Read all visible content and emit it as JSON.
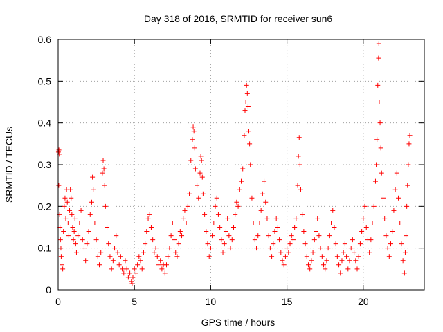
{
  "chart_data": {
    "type": "scatter",
    "title": "Day 318 of 2016, SRMTID for receiver sun6",
    "xlabel": "GPS time / hours",
    "ylabel": "SRMTID / TECUs",
    "xlim": [
      0,
      24
    ],
    "ylim": [
      0,
      0.6
    ],
    "xticks": [
      0,
      5,
      10,
      15,
      20
    ],
    "yticks": [
      0,
      0.1,
      0.2,
      0.3,
      0.4,
      0.5,
      0.6
    ],
    "xtick_labels": [
      "0",
      "5",
      "10",
      "15",
      "20"
    ],
    "ytick_labels": [
      "0",
      "0.1",
      "0.2",
      "0.3",
      "0.4",
      "0.5",
      "0.6"
    ],
    "grid": true,
    "marker": "+",
    "marker_color": "#ff0000",
    "series": [
      {
        "name": "SRMTID",
        "points": [
          [
            0.02,
            0.33
          ],
          [
            0.05,
            0.335
          ],
          [
            0.08,
            0.325
          ],
          [
            0.04,
            0.25
          ],
          [
            0.1,
            0.18
          ],
          [
            0.12,
            0.15
          ],
          [
            0.15,
            0.12
          ],
          [
            0.18,
            0.1
          ],
          [
            0.2,
            0.08
          ],
          [
            0.25,
            0.06
          ],
          [
            0.3,
            0.05
          ],
          [
            0.35,
            0.14
          ],
          [
            0.4,
            0.2
          ],
          [
            0.45,
            0.22
          ],
          [
            0.5,
            0.17
          ],
          [
            0.55,
            0.24
          ],
          [
            0.6,
            0.21
          ],
          [
            0.65,
            0.16
          ],
          [
            0.7,
            0.13
          ],
          [
            0.75,
            0.19
          ],
          [
            0.8,
            0.24
          ],
          [
            0.85,
            0.22
          ],
          [
            0.9,
            0.18
          ],
          [
            0.95,
            0.15
          ],
          [
            1.0,
            0.12
          ],
          [
            1.05,
            0.14
          ],
          [
            1.1,
            0.17
          ],
          [
            1.15,
            0.11
          ],
          [
            1.2,
            0.09
          ],
          [
            1.3,
            0.13
          ],
          [
            1.4,
            0.16
          ],
          [
            1.5,
            0.19
          ],
          [
            1.6,
            0.12
          ],
          [
            1.7,
            0.1
          ],
          [
            1.8,
            0.07
          ],
          [
            1.9,
            0.11
          ],
          [
            2.0,
            0.14
          ],
          [
            2.1,
            0.18
          ],
          [
            2.2,
            0.21
          ],
          [
            2.25,
            0.27
          ],
          [
            2.3,
            0.24
          ],
          [
            2.4,
            0.16
          ],
          [
            2.5,
            0.12
          ],
          [
            2.6,
            0.08
          ],
          [
            2.7,
            0.06
          ],
          [
            2.8,
            0.09
          ],
          [
            2.9,
            0.28
          ],
          [
            2.95,
            0.31
          ],
          [
            3.0,
            0.29
          ],
          [
            3.05,
            0.25
          ],
          [
            3.1,
            0.2
          ],
          [
            3.2,
            0.15
          ],
          [
            3.3,
            0.11
          ],
          [
            3.4,
            0.08
          ],
          [
            3.5,
            0.05
          ],
          [
            3.6,
            0.07
          ],
          [
            3.7,
            0.1
          ],
          [
            3.8,
            0.13
          ],
          [
            3.9,
            0.09
          ],
          [
            4.0,
            0.06
          ],
          [
            4.1,
            0.08
          ],
          [
            4.2,
            0.05
          ],
          [
            4.3,
            0.04
          ],
          [
            4.4,
            0.07
          ],
          [
            4.5,
            0.05
          ],
          [
            4.6,
            0.03
          ],
          [
            4.7,
            0.04
          ],
          [
            4.8,
            0.02
          ],
          [
            4.85,
            0.015
          ],
          [
            4.9,
            0.03
          ],
          [
            5.0,
            0.05
          ],
          [
            5.1,
            0.04
          ],
          [
            5.2,
            0.06
          ],
          [
            5.3,
            0.08
          ],
          [
            5.4,
            0.07
          ],
          [
            5.5,
            0.05
          ],
          [
            5.6,
            0.09
          ],
          [
            5.7,
            0.11
          ],
          [
            5.8,
            0.14
          ],
          [
            5.9,
            0.17
          ],
          [
            6.0,
            0.18
          ],
          [
            6.1,
            0.15
          ],
          [
            6.2,
            0.12
          ],
          [
            6.3,
            0.09
          ],
          [
            6.4,
            0.1
          ],
          [
            6.5,
            0.08
          ],
          [
            6.6,
            0.06
          ],
          [
            6.7,
            0.07
          ],
          [
            6.8,
            0.05
          ],
          [
            6.9,
            0.06
          ],
          [
            7.0,
            0.04
          ],
          [
            7.1,
            0.06
          ],
          [
            7.2,
            0.08
          ],
          [
            7.3,
            0.1
          ],
          [
            7.4,
            0.13
          ],
          [
            7.5,
            0.16
          ],
          [
            7.6,
            0.12
          ],
          [
            7.7,
            0.09
          ],
          [
            7.8,
            0.08
          ],
          [
            7.9,
            0.11
          ],
          [
            8.0,
            0.14
          ],
          [
            8.1,
            0.13
          ],
          [
            8.2,
            0.17
          ],
          [
            8.3,
            0.19
          ],
          [
            8.4,
            0.16
          ],
          [
            8.5,
            0.2
          ],
          [
            8.6,
            0.23
          ],
          [
            8.7,
            0.31
          ],
          [
            8.8,
            0.36
          ],
          [
            8.85,
            0.39
          ],
          [
            8.9,
            0.38
          ],
          [
            8.95,
            0.34
          ],
          [
            9.0,
            0.29
          ],
          [
            9.1,
            0.25
          ],
          [
            9.2,
            0.22
          ],
          [
            9.3,
            0.28
          ],
          [
            9.35,
            0.32
          ],
          [
            9.4,
            0.31
          ],
          [
            9.45,
            0.27
          ],
          [
            9.5,
            0.23
          ],
          [
            9.6,
            0.18
          ],
          [
            9.7,
            0.14
          ],
          [
            9.8,
            0.11
          ],
          [
            9.9,
            0.08
          ],
          [
            10.0,
            0.1
          ],
          [
            10.1,
            0.13
          ],
          [
            10.2,
            0.16
          ],
          [
            10.3,
            0.2
          ],
          [
            10.4,
            0.22
          ],
          [
            10.5,
            0.18
          ],
          [
            10.6,
            0.15
          ],
          [
            10.7,
            0.12
          ],
          [
            10.8,
            0.09
          ],
          [
            10.9,
            0.11
          ],
          [
            11.0,
            0.14
          ],
          [
            11.1,
            0.17
          ],
          [
            11.2,
            0.13
          ],
          [
            11.3,
            0.1
          ],
          [
            11.4,
            0.12
          ],
          [
            11.5,
            0.15
          ],
          [
            11.6,
            0.18
          ],
          [
            11.7,
            0.21
          ],
          [
            11.8,
            0.2
          ],
          [
            11.9,
            0.24
          ],
          [
            12.0,
            0.26
          ],
          [
            12.1,
            0.29
          ],
          [
            12.2,
            0.37
          ],
          [
            12.25,
            0.43
          ],
          [
            12.3,
            0.45
          ],
          [
            12.35,
            0.49
          ],
          [
            12.4,
            0.47
          ],
          [
            12.45,
            0.44
          ],
          [
            12.5,
            0.38
          ],
          [
            12.55,
            0.35
          ],
          [
            12.6,
            0.3
          ],
          [
            12.7,
            0.22
          ],
          [
            12.8,
            0.16
          ],
          [
            12.9,
            0.12
          ],
          [
            13.0,
            0.1
          ],
          [
            13.1,
            0.13
          ],
          [
            13.2,
            0.16
          ],
          [
            13.3,
            0.19
          ],
          [
            13.4,
            0.23
          ],
          [
            13.5,
            0.26
          ],
          [
            13.6,
            0.21
          ],
          [
            13.7,
            0.17
          ],
          [
            13.8,
            0.13
          ],
          [
            13.9,
            0.1
          ],
          [
            14.0,
            0.08
          ],
          [
            14.1,
            0.11
          ],
          [
            14.2,
            0.14
          ],
          [
            14.3,
            0.17
          ],
          [
            14.4,
            0.15
          ],
          [
            14.5,
            0.12
          ],
          [
            14.6,
            0.09
          ],
          [
            14.7,
            0.07
          ],
          [
            14.8,
            0.06
          ],
          [
            14.9,
            0.08
          ],
          [
            15.0,
            0.1
          ],
          [
            15.1,
            0.09
          ],
          [
            15.2,
            0.11
          ],
          [
            15.3,
            0.13
          ],
          [
            15.4,
            0.12
          ],
          [
            15.5,
            0.15
          ],
          [
            15.6,
            0.17
          ],
          [
            15.7,
            0.25
          ],
          [
            15.75,
            0.32
          ],
          [
            15.8,
            0.365
          ],
          [
            15.85,
            0.3
          ],
          [
            15.9,
            0.24
          ],
          [
            16.0,
            0.18
          ],
          [
            16.1,
            0.14
          ],
          [
            16.2,
            0.11
          ],
          [
            16.3,
            0.08
          ],
          [
            16.4,
            0.06
          ],
          [
            16.5,
            0.05
          ],
          [
            16.6,
            0.07
          ],
          [
            16.7,
            0.09
          ],
          [
            16.8,
            0.12
          ],
          [
            16.9,
            0.14
          ],
          [
            17.0,
            0.17
          ],
          [
            17.1,
            0.13
          ],
          [
            17.2,
            0.1
          ],
          [
            17.3,
            0.08
          ],
          [
            17.4,
            0.06
          ],
          [
            17.5,
            0.05
          ],
          [
            17.6,
            0.07
          ],
          [
            17.7,
            0.1
          ],
          [
            17.8,
            0.13
          ],
          [
            17.9,
            0.16
          ],
          [
            18.0,
            0.19
          ],
          [
            18.1,
            0.15
          ],
          [
            18.2,
            0.11
          ],
          [
            18.3,
            0.08
          ],
          [
            18.4,
            0.06
          ],
          [
            18.5,
            0.04
          ],
          [
            18.6,
            0.07
          ],
          [
            18.7,
            0.09
          ],
          [
            18.8,
            0.11
          ],
          [
            18.9,
            0.08
          ],
          [
            19.0,
            0.05
          ],
          [
            19.1,
            0.07
          ],
          [
            19.2,
            0.1
          ],
          [
            19.3,
            0.12
          ],
          [
            19.4,
            0.09
          ],
          [
            19.5,
            0.07
          ],
          [
            19.6,
            0.05
          ],
          [
            19.7,
            0.08
          ],
          [
            19.8,
            0.11
          ],
          [
            19.9,
            0.14
          ],
          [
            20.0,
            0.17
          ],
          [
            20.1,
            0.2
          ],
          [
            20.2,
            0.15
          ],
          [
            20.3,
            0.12
          ],
          [
            20.4,
            0.09
          ],
          [
            20.5,
            0.12
          ],
          [
            20.6,
            0.16
          ],
          [
            20.7,
            0.2
          ],
          [
            20.8,
            0.26
          ],
          [
            20.85,
            0.3
          ],
          [
            20.9,
            0.36
          ],
          [
            20.95,
            0.49
          ],
          [
            21.0,
            0.555
          ],
          [
            21.02,
            0.59
          ],
          [
            21.05,
            0.45
          ],
          [
            21.1,
            0.4
          ],
          [
            21.15,
            0.34
          ],
          [
            21.2,
            0.28
          ],
          [
            21.3,
            0.22
          ],
          [
            21.4,
            0.17
          ],
          [
            21.5,
            0.13
          ],
          [
            21.6,
            0.1
          ],
          [
            21.7,
            0.08
          ],
          [
            21.8,
            0.11
          ],
          [
            21.9,
            0.14
          ],
          [
            22.0,
            0.19
          ],
          [
            22.1,
            0.24
          ],
          [
            22.2,
            0.28
          ],
          [
            22.3,
            0.22
          ],
          [
            22.4,
            0.16
          ],
          [
            22.5,
            0.11
          ],
          [
            22.6,
            0.07
          ],
          [
            22.7,
            0.04
          ],
          [
            22.75,
            0.09
          ],
          [
            22.8,
            0.13
          ],
          [
            22.85,
            0.2
          ],
          [
            22.9,
            0.25
          ],
          [
            22.95,
            0.3
          ],
          [
            23.0,
            0.35
          ],
          [
            23.05,
            0.37
          ]
        ]
      }
    ]
  }
}
